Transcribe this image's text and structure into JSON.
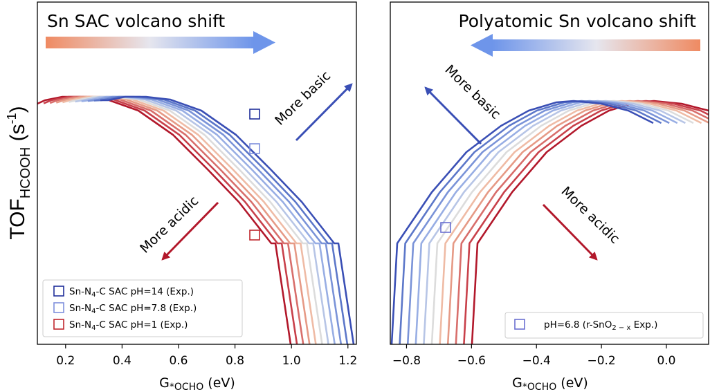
{
  "chart_data": [
    {
      "type": "line",
      "title": "Sn SAC volcano shift",
      "xlabel": "G*OCHO (eV)",
      "ylabel": "TOF_HCOOH (s^-1)",
      "xlim": [
        0.1,
        1.23
      ],
      "ylim": [
        0,
        1
      ],
      "xticks": [
        "0.2",
        "0.4",
        "0.6",
        "0.8",
        "1.0",
        "1.2"
      ],
      "xtick_values": [
        0.2,
        0.4,
        0.6,
        0.8,
        1.0,
        1.2
      ],
      "shift_arrow_direction": "right",
      "series_count": 11,
      "series_shift_per_line_eV": 0.0445,
      "series_color_order": "dark red (acidic, pH=1) to dark blue (basic, pH=14)",
      "annotations": [
        {
          "text": "More basic",
          "direction": "up-right",
          "color": "#3a4fb5"
        },
        {
          "text": "More acidic",
          "direction": "down-left",
          "color": "#b2182b"
        }
      ],
      "markers": [
        {
          "label": "Sn-N4-C SAC pH=14 (Exp.)",
          "x": 0.875,
          "y": 0.89,
          "color": "#1f2e99"
        },
        {
          "label": "Sn-N4-C SAC pH=7.8 (Exp.)",
          "x": 0.875,
          "y": 0.76,
          "color": "#7f8fdc"
        },
        {
          "label": "Sn-N4-C SAC pH=1 (Exp.)",
          "x": 0.875,
          "y": 0.43,
          "color": "#c0262d"
        }
      ],
      "legend_position": "lower-left"
    },
    {
      "type": "line",
      "title": "Polyatomic Sn volcano shift",
      "xlabel": "G*OCHO (eV)",
      "xlim": [
        -0.85,
        0.13
      ],
      "ylim": [
        0,
        1
      ],
      "xticks": [
        "−0.8",
        "−0.6",
        "−0.4",
        "−0.2",
        "0.0"
      ],
      "xtick_values": [
        -0.8,
        -0.6,
        -0.4,
        -0.2,
        0.0
      ],
      "shift_arrow_direction": "left",
      "series_count": 11,
      "series_shift_per_line_eV": -0.0175,
      "series_color_order": "dark red (acidic) to dark blue (basic)",
      "annotations": [
        {
          "text": "More basic",
          "direction": "up-left",
          "color": "#3a4fb5"
        },
        {
          "text": "More acidic",
          "direction": "down-right",
          "color": "#b2182b"
        }
      ],
      "markers": [
        {
          "label": "pH=6.8 (r-SnO2−x Exp.)",
          "x": -0.675,
          "y": 0.45,
          "color": "#6a6fd0"
        }
      ],
      "legend_position": "lower-right"
    }
  ],
  "labels": {
    "left_title": "Sn SAC volcano shift",
    "right_title": "Polyatomic Sn volcano shift",
    "ylabel_main": "TOF",
    "ylabel_sub": "HCOOH",
    "ylabel_unit_pre": " (s",
    "ylabel_unit_sup": "-1",
    "ylabel_unit_post": ")",
    "xlabel_main": "G",
    "xlabel_sub": "*OCHO",
    "xlabel_unit": " (eV)",
    "left_basic": "More basic",
    "left_acidic": "More acidic",
    "right_basic": "More basic",
    "right_acidic": "More acidic",
    "leg1_a": "Sn-N",
    "leg1_sub": "4",
    "leg1_b": "-C SAC pH=14 (Exp.)",
    "leg2_a": "Sn-N",
    "leg2_sub": "4",
    "leg2_b": "-C SAC pH=7.8 (Exp.)",
    "leg3_a": "Sn-N",
    "leg3_sub": "4",
    "leg3_b": "-C SAC pH=1 (Exp.)",
    "rleg_a": "pH=6.8 (r-SnO",
    "rleg_sub": "2 − x",
    "rleg_b": " Exp.)"
  },
  "colors": {
    "basic": "#3a4fb5",
    "acidic": "#b2182b",
    "series": [
      "#b2182b",
      "#c8404a",
      "#d86e6b",
      "#e69a86",
      "#efbba5",
      "#dcdcdc",
      "#b7c5e6",
      "#98aee4",
      "#7a93d8",
      "#5c77c9",
      "#3a4fb5"
    ]
  }
}
